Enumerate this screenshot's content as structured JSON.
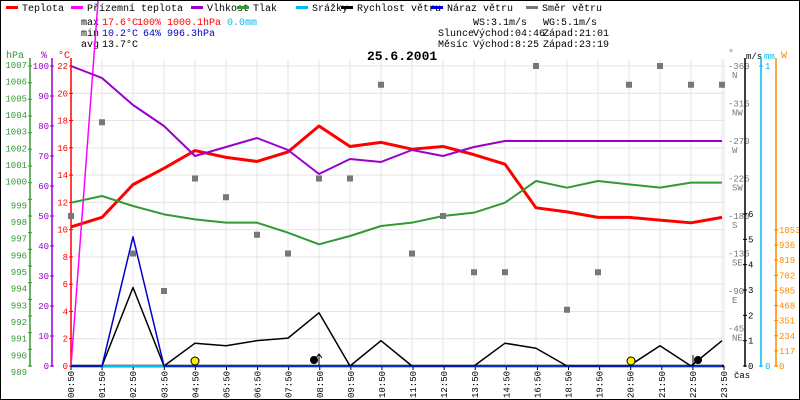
{
  "legend": [
    {
      "label": "Teplota",
      "color": "#ff0000"
    },
    {
      "label": "Přízemní teplota",
      "color": "#ff00ff"
    },
    {
      "label": "Vlhkost",
      "color": "#9900cc"
    },
    {
      "label": "Tlak",
      "color": "#339933"
    },
    {
      "label": "Srážky",
      "color": "#00bbee"
    },
    {
      "label": "Rychlost větru",
      "color": "#000000"
    },
    {
      "label": "Náraz větru",
      "color": "#0000cc"
    },
    {
      "label": "Směr větru",
      "color": "#777777"
    }
  ],
  "stats": {
    "max_label": "max",
    "min_label": "min",
    "avg_label": "avg",
    "max_temp": "17.6°C",
    "max_hum": "100%",
    "max_press": "1000.1hPa",
    "max_rain": "0.0mm",
    "min_temp": "10.2°C",
    "min_hum": "64%",
    "min_press": "996.3hPa",
    "avg_temp": "13.7°C"
  },
  "info": {
    "ws": "WS:3.1m/s",
    "wg": "WG:5.1m/s",
    "sun_label": "Slunce",
    "sunrise": "Východ:04:46",
    "sunset": "Západ:21:01",
    "moon_label": "Měsíc",
    "moonrise": "Východ:8:25",
    "moonset": "Západ:23:19"
  },
  "axis_units": {
    "hpa": "hPa",
    "pct": "%",
    "temp": "°C",
    "dir": "°",
    "ms": "m/s",
    "mm": "mm",
    "w": "W"
  },
  "chart_data": {
    "type": "line",
    "title": "25.6.2001",
    "xlabel": "čas",
    "x_ticks": [
      "00:50",
      "01:50",
      "02:50",
      "03:50",
      "04:50",
      "05:50",
      "06:50",
      "07:50",
      "08:50",
      "09:50",
      "10:50",
      "11:50",
      "12:50",
      "13:50",
      "14:50",
      "16:50",
      "18:50",
      "19:50",
      "20:50",
      "21:50",
      "22:50",
      "23:50"
    ],
    "grid": true,
    "axes": {
      "pressure": {
        "unit": "hPa",
        "range": [
          989,
          1007
        ],
        "step": 1,
        "color": "#339933"
      },
      "humidity": {
        "unit": "%",
        "range": [
          0,
          100
        ],
        "step": 10,
        "color": "#9900cc"
      },
      "temperature": {
        "unit": "°C",
        "range": [
          0,
          22
        ],
        "step": 2,
        "color": "#ff0000"
      },
      "wind_direction": {
        "unit": "°",
        "range": [
          0,
          360
        ],
        "ticks": [
          45,
          90,
          135,
          180,
          225,
          270,
          315,
          360
        ],
        "compass": [
          "NE",
          "E",
          "SE",
          "S",
          "SW",
          "W",
          "NW",
          "N"
        ],
        "color": "#777777"
      },
      "wind_speed": {
        "unit": "m/s",
        "range": [
          0,
          6
        ],
        "step": 1,
        "color": "#000000"
      },
      "rain": {
        "unit": "mm",
        "range": [
          0,
          1
        ],
        "step": 1,
        "color": "#00bbee"
      },
      "solar": {
        "unit": "W",
        "range": [
          0,
          1053
        ],
        "step": 117,
        "color": "#ff8800"
      }
    },
    "series": [
      {
        "name": "Teplota",
        "axis": "temperature",
        "color": "#ff0000",
        "values": [
          10.2,
          10.9,
          13.3,
          14.5,
          15.8,
          15.3,
          15.0,
          15.7,
          17.6,
          16.1,
          16.4,
          15.9,
          16.1,
          15.5,
          14.8,
          11.6,
          11.3,
          10.9,
          10.9,
          10.7,
          10.5,
          10.9
        ]
      },
      {
        "name": "Přízemní teplota",
        "axis": "temperature",
        "color": "#ff00ff",
        "values": [
          0,
          30.7
        ]
      },
      {
        "name": "Vlhkost",
        "axis": "humidity",
        "color": "#9900cc",
        "values": [
          100,
          96,
          87,
          80,
          70,
          73,
          76,
          72,
          64,
          69,
          68,
          72,
          70,
          73,
          75,
          75,
          75,
          75,
          75,
          75,
          75,
          75
        ]
      },
      {
        "name": "Tlak",
        "axis": "pressure",
        "color": "#339933",
        "values": [
          998.8,
          999.2,
          998.6,
          998.1,
          997.8,
          997.6,
          997.6,
          997.0,
          996.3,
          996.8,
          997.4,
          997.6,
          998.0,
          998.2,
          998.8,
          1000.1,
          999.7,
          1000.1,
          999.9,
          999.7,
          1000.0,
          1000.0
        ]
      },
      {
        "name": "Srážky",
        "axis": "rain",
        "color": "#00bbee",
        "values": [
          0,
          0,
          0,
          0,
          0,
          0,
          0,
          0,
          0,
          0,
          0,
          0,
          0,
          0,
          0,
          0,
          0,
          0,
          0,
          0,
          0,
          0
        ]
      },
      {
        "name": "Rychlost větru",
        "axis": "wind_speed",
        "color": "#000000",
        "values": [
          0,
          0,
          3.1,
          0,
          0.9,
          0.8,
          1.0,
          1.1,
          2.1,
          0,
          1.0,
          0,
          0,
          0,
          0.9,
          0.7,
          0,
          0,
          0,
          0.8,
          0,
          1.0
        ]
      },
      {
        "name": "Náraz větru",
        "axis": "wind_speed",
        "color": "#0000cc",
        "values": [
          0,
          0,
          5.1,
          0,
          0,
          0,
          0,
          0,
          0,
          0,
          0,
          0,
          0,
          0,
          0,
          0,
          0,
          0,
          0,
          0,
          0,
          0
        ]
      },
      {
        "name": "Směr větru",
        "axis": "wind_direction",
        "color": "#777777",
        "values": [
          180,
          292.5,
          135,
          90,
          225,
          202.5,
          157.5,
          135,
          225,
          225,
          337.5,
          135,
          180,
          112.5,
          112.5,
          360,
          67.5,
          112.5,
          337.5,
          360,
          337.5,
          337.5
        ]
      }
    ]
  }
}
